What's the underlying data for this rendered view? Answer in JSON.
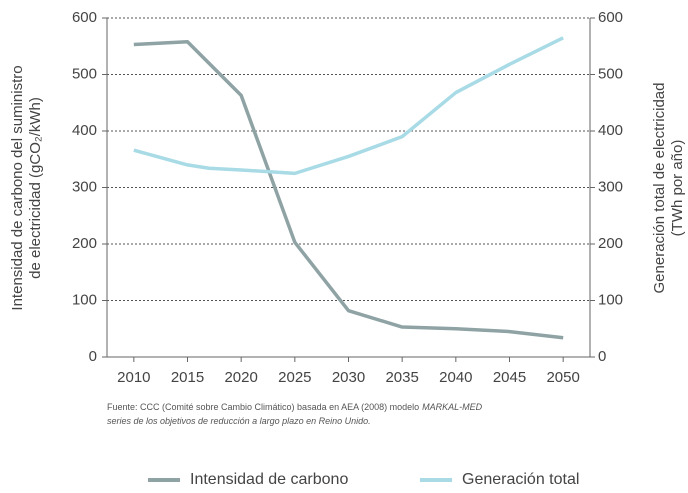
{
  "chart_data": {
    "type": "line",
    "y_label": [
      "Intensidad  de carbono del suministro",
      "de electricidad (gCO₂/kWh)"
    ],
    "y2_label": [
      "Generación total de electricidad",
      "(TWh por año)"
    ],
    "xlim": [
      2007.5,
      2052.5
    ],
    "xticks": [
      2010,
      2015,
      2020,
      2025,
      2030,
      2035,
      2040,
      2045,
      2050
    ],
    "ylim": [
      0,
      600
    ],
    "yticks": [
      0,
      100,
      200,
      300,
      400,
      500,
      600
    ],
    "y2lim": [
      0,
      600
    ],
    "y2ticks": [
      0,
      100,
      200,
      300,
      400,
      500,
      600
    ],
    "grid": true,
    "series": [
      {
        "name": "Intensidad de carbono",
        "color": "#8fa3a5",
        "x": [
          2010,
          2015,
          2020,
          2025,
          2030,
          2035,
          2040,
          2045,
          2050
        ],
        "values": [
          553,
          558,
          463,
          203,
          82,
          53,
          50,
          45,
          34
        ]
      },
      {
        "name": "Generación total",
        "color": "#a8dbe6",
        "axis": "y2",
        "x": [
          2010,
          2015,
          2017,
          2020,
          2025,
          2030,
          2035,
          2040,
          2045,
          2050
        ],
        "values": [
          366,
          340,
          334,
          331,
          325,
          355,
          390,
          468,
          518,
          565
        ]
      }
    ],
    "source": {
      "line1": "Fuente: CCC (Comité sobre Cambio Climático) basada en AEA (2008) modelo",
      "line1_italic": "MARKAL-MED",
      "line2": "series de los objetivos de reducción a largo plazo en Reino Unido."
    }
  }
}
